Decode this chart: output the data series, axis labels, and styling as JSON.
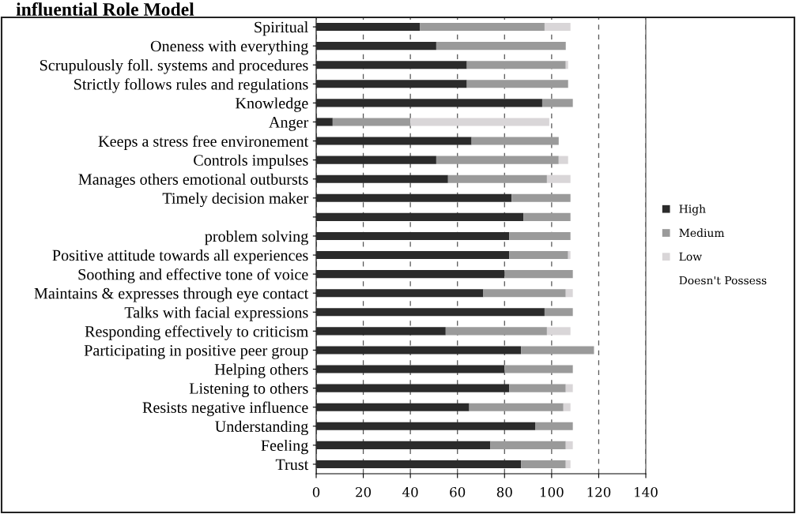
{
  "chart_data": {
    "type": "bar",
    "orientation": "horizontal",
    "stacked": true,
    "title": "influential Role Model",
    "categories": [
      "Spiritual",
      "Oneness with everything",
      "Scrupulously foll. systems and procedures",
      "Strictly follows rules and regulations",
      "Knowledge",
      "Anger",
      "Keeps a stress free environement",
      "Controls impulses",
      "Manages others emotional outbursts",
      "Timely decision maker",
      null,
      "problem solving",
      "Positive attitude towards all experiences",
      "Soothing and effective tone of voice",
      "Maintains & expresses through eye contact",
      "Talks with facial expressions",
      "Responding effectively to criticism",
      "Participating in positive peer group",
      "Helping others",
      "Listening to others",
      "Resists negative influence",
      "Understanding",
      "Feeling",
      "Trust"
    ],
    "series": [
      {
        "name": "High",
        "color": "#2b2b2b",
        "values": [
          44,
          51,
          64,
          64,
          96,
          7,
          66,
          51,
          56,
          83,
          88,
          82,
          82,
          80,
          71,
          97,
          55,
          87,
          80,
          82,
          65,
          93,
          74,
          87
        ]
      },
      {
        "name": "Medium",
        "color": "#9a9a9a",
        "values": [
          53,
          55,
          42,
          43,
          13,
          33,
          37,
          52,
          42,
          25,
          20,
          26,
          25,
          29,
          35,
          12,
          43,
          31,
          29,
          24,
          40,
          16,
          32,
          19
        ]
      },
      {
        "name": "Low",
        "color": "#d9d6d8",
        "values": [
          11,
          null,
          1,
          null,
          null,
          59,
          null,
          4,
          10,
          null,
          null,
          null,
          1,
          null,
          3,
          null,
          10,
          null,
          null,
          3,
          3,
          null,
          3,
          2
        ]
      },
      {
        "name": "Doesn't Possess",
        "values": [
          null,
          null,
          null,
          null,
          null,
          null,
          null,
          null,
          null,
          null,
          null,
          null,
          null,
          null,
          null,
          null,
          null,
          null,
          null,
          null,
          null,
          null,
          null,
          null
        ]
      }
    ],
    "xlim": [
      0,
      140
    ],
    "xticks": [
      0,
      20,
      40,
      60,
      80,
      100,
      120,
      140
    ],
    "grid": "x",
    "legend": "right"
  }
}
